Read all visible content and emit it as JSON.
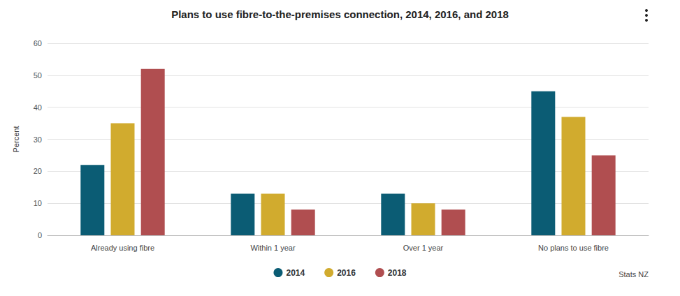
{
  "chart_data": {
    "type": "bar",
    "title": "Plans to use fibre-to-the-premises connection, 2014, 2016, and 2018",
    "y_label": "Percent",
    "source": "Stats NZ",
    "categories": [
      "Already using fibre",
      "Within 1 year",
      "Over 1 year",
      "No plans to use fibre"
    ],
    "series": [
      {
        "name": "2014",
        "color": "#0b5c74",
        "values": [
          22,
          13,
          13,
          45
        ]
      },
      {
        "name": "2016",
        "color": "#d1ab2e",
        "values": [
          35,
          13,
          10,
          37
        ]
      },
      {
        "name": "2018",
        "color": "#b04e50",
        "values": [
          52,
          8,
          8,
          25
        ]
      }
    ],
    "ylim": [
      0,
      60
    ],
    "yticks": [
      0,
      10,
      20,
      30,
      40,
      50,
      60
    ],
    "grid": true,
    "legend": "bottom"
  }
}
